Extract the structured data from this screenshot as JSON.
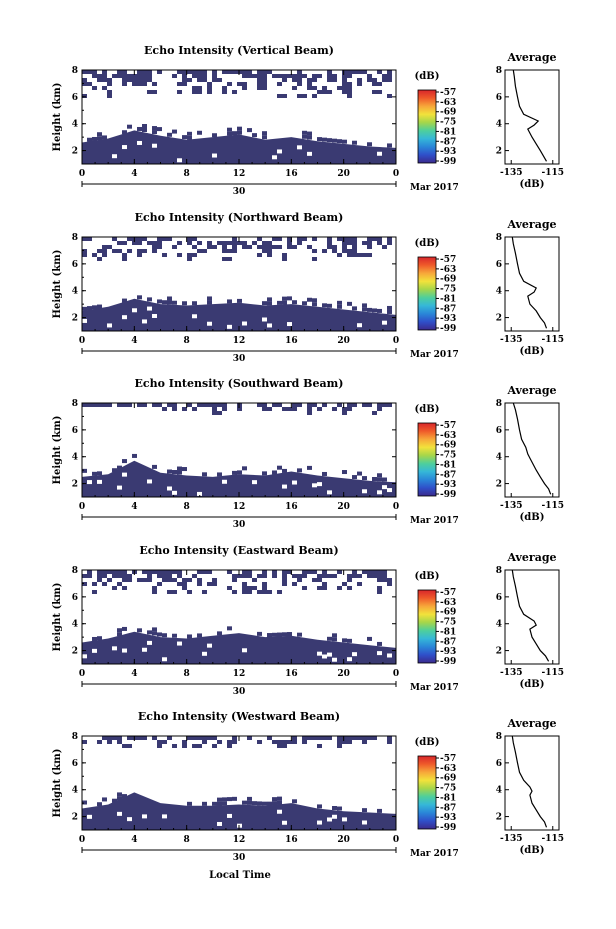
{
  "figure": {
    "bottom_xlabel": "Local Time",
    "date_label": "Mar 2017",
    "date_tick": "30",
    "colorbar": {
      "unit_label": "(dB)",
      "tick_labels": [
        "-57",
        "-63",
        "-69",
        "-75",
        "-81",
        "-87",
        "-93",
        "-99"
      ],
      "gradient": [
        "#3b2a8c",
        "#2f4fc9",
        "#2a86d8",
        "#35b7d8",
        "#4ecf9c",
        "#a6d64a",
        "#f2e23b",
        "#f7a73a",
        "#ef5a2a",
        "#d8262b"
      ]
    },
    "colors": {
      "echo_fill": "#3a3a72",
      "background": "#ffffff"
    }
  },
  "chart_data": [
    {
      "type": "heatmap",
      "title": "Echo Intensity (Vertical Beam)",
      "ylabel": "Height (km)",
      "ylim": [
        1,
        8
      ],
      "yticks": [
        "8",
        "6",
        "4",
        "2"
      ],
      "xticks": [
        "0",
        "4",
        "8",
        "12",
        "16",
        "20",
        "0"
      ],
      "xlim_hours": [
        0,
        24
      ],
      "boundary_hours": [
        0,
        2,
        4,
        6,
        8,
        10,
        12,
        14,
        16,
        18,
        20,
        22,
        24
      ],
      "boundary_height_km": [
        2.6,
        2.9,
        3.5,
        3.1,
        2.8,
        3.0,
        3.2,
        2.8,
        3.0,
        2.7,
        2.5,
        2.3,
        2.2
      ],
      "upper_echo_top_km": 8,
      "upper_echo_bottom_km": 6.2,
      "profile": {
        "title": "Average",
        "xlabel": "(dB)",
        "xticks": [
          "-135",
          "-115"
        ],
        "yticks": [
          "8",
          "6",
          "4",
          "2"
        ],
        "x_db": [
          -118,
          -119.5,
          -121,
          -123,
          -125,
          -127,
          -124,
          -122,
          -129,
          -131,
          -132,
          -133,
          -133.5,
          -134
        ],
        "height_km": [
          1.2,
          1.6,
          2.0,
          2.5,
          3.0,
          3.6,
          3.9,
          4.2,
          4.7,
          5.3,
          6.0,
          6.8,
          7.5,
          8.0
        ]
      }
    },
    {
      "type": "heatmap",
      "title": "Echo Intensity (Northward Beam)",
      "ylabel": "Height (km)",
      "ylim": [
        1,
        8
      ],
      "yticks": [
        "8",
        "6",
        "4",
        "2"
      ],
      "xticks": [
        "0",
        "4",
        "8",
        "12",
        "16",
        "20",
        "0"
      ],
      "xlim_hours": [
        0,
        24
      ],
      "boundary_hours": [
        0,
        2,
        4,
        6,
        8,
        10,
        12,
        14,
        16,
        18,
        20,
        22,
        24
      ],
      "boundary_height_km": [
        2.5,
        2.8,
        3.4,
        3.0,
        2.9,
        3.0,
        3.1,
        2.9,
        3.0,
        2.8,
        2.6,
        2.4,
        2.2
      ],
      "upper_echo_top_km": 8,
      "upper_echo_bottom_km": 6.4,
      "profile": {
        "title": "Average",
        "xlabel": "(dB)",
        "xticks": [
          "-135",
          "-115"
        ],
        "yticks": [
          "8",
          "6",
          "4",
          "2"
        ],
        "x_db": [
          -118,
          -119,
          -121,
          -123,
          -126,
          -127,
          -124,
          -123,
          -129,
          -131,
          -132,
          -133,
          -134,
          -134.5
        ],
        "height_km": [
          1.2,
          1.6,
          2.0,
          2.5,
          3.0,
          3.6,
          3.9,
          4.2,
          4.7,
          5.3,
          6.0,
          6.8,
          7.5,
          8.0
        ]
      }
    },
    {
      "type": "heatmap",
      "title": "Echo Intensity (Southward Beam)",
      "ylabel": "Height (km)",
      "ylim": [
        1,
        8
      ],
      "yticks": [
        "8",
        "6",
        "4",
        "2"
      ],
      "xticks": [
        "0",
        "4",
        "8",
        "12",
        "16",
        "20",
        "0"
      ],
      "xlim_hours": [
        0,
        24
      ],
      "boundary_hours": [
        0,
        2,
        4,
        6,
        8,
        10,
        12,
        14,
        16,
        18,
        20,
        22,
        24
      ],
      "boundary_height_km": [
        2.5,
        2.7,
        3.7,
        2.8,
        2.6,
        2.5,
        2.7,
        2.6,
        2.9,
        2.6,
        2.4,
        2.2,
        2.1
      ],
      "upper_echo_top_km": 8,
      "upper_echo_bottom_km": 7.4,
      "profile": {
        "title": "Average",
        "xlabel": "(dB)",
        "xticks": [
          "-135",
          "-115"
        ],
        "yticks": [
          "8",
          "6",
          "4",
          "2"
        ],
        "x_db": [
          -116,
          -117,
          -119,
          -121,
          -123,
          -125,
          -126,
          -127,
          -128,
          -130,
          -131,
          -132,
          -133,
          -134
        ],
        "height_km": [
          1.2,
          1.6,
          2.0,
          2.5,
          3.0,
          3.6,
          3.9,
          4.2,
          4.7,
          5.3,
          6.0,
          6.8,
          7.5,
          8.0
        ]
      }
    },
    {
      "type": "heatmap",
      "title": "Echo Intensity (Eastward Beam)",
      "ylabel": "Height (km)",
      "ylim": [
        1,
        8
      ],
      "yticks": [
        "8",
        "6",
        "4",
        "2"
      ],
      "xticks": [
        "0",
        "4",
        "8",
        "12",
        "16",
        "20",
        "0"
      ],
      "xlim_hours": [
        0,
        24
      ],
      "boundary_hours": [
        0,
        2,
        4,
        6,
        8,
        10,
        12,
        14,
        16,
        18,
        20,
        22,
        24
      ],
      "boundary_height_km": [
        2.6,
        2.9,
        3.4,
        3.0,
        2.9,
        3.1,
        3.3,
        3.0,
        3.1,
        2.8,
        2.6,
        2.4,
        2.2
      ],
      "upper_echo_top_km": 8,
      "upper_echo_bottom_km": 6.3,
      "profile": {
        "title": "Average",
        "xlabel": "(dB)",
        "xticks": [
          "-135",
          "-115"
        ],
        "yticks": [
          "8",
          "6",
          "4",
          "2"
        ],
        "x_db": [
          -117,
          -118.5,
          -121,
          -123,
          -125,
          -126,
          -123,
          -124,
          -129,
          -131,
          -132,
          -133,
          -134,
          -134.5
        ],
        "height_km": [
          1.2,
          1.6,
          2.0,
          2.5,
          3.0,
          3.6,
          3.9,
          4.2,
          4.7,
          5.3,
          6.0,
          6.8,
          7.5,
          8.0
        ]
      }
    },
    {
      "type": "heatmap",
      "title": "Echo Intensity (Westward Beam)",
      "ylabel": "Height (km)",
      "ylim": [
        1,
        8
      ],
      "yticks": [
        "8",
        "6",
        "4",
        "2"
      ],
      "xticks": [
        "0",
        "4",
        "8",
        "12",
        "16",
        "20",
        "0"
      ],
      "xlim_hours": [
        0,
        24
      ],
      "boundary_hours": [
        0,
        2,
        4,
        6,
        8,
        10,
        12,
        14,
        16,
        18,
        20,
        22,
        24
      ],
      "boundary_height_km": [
        2.6,
        2.9,
        3.8,
        3.0,
        2.8,
        2.8,
        2.9,
        2.8,
        3.0,
        2.6,
        2.4,
        2.3,
        2.2
      ],
      "upper_echo_top_km": 8,
      "upper_echo_bottom_km": 7.3,
      "profile": {
        "title": "Average",
        "xlabel": "(dB)",
        "xticks": [
          "-135",
          "-115"
        ],
        "yticks": [
          "8",
          "6",
          "4",
          "2"
        ],
        "x_db": [
          -118,
          -119,
          -121,
          -123,
          -125,
          -126,
          -125,
          -126,
          -129,
          -131,
          -132,
          -133,
          -134,
          -134.5
        ],
        "height_km": [
          1.2,
          1.6,
          2.0,
          2.5,
          3.0,
          3.6,
          3.9,
          4.2,
          4.7,
          5.3,
          6.0,
          6.8,
          7.5,
          8.0
        ]
      }
    }
  ]
}
